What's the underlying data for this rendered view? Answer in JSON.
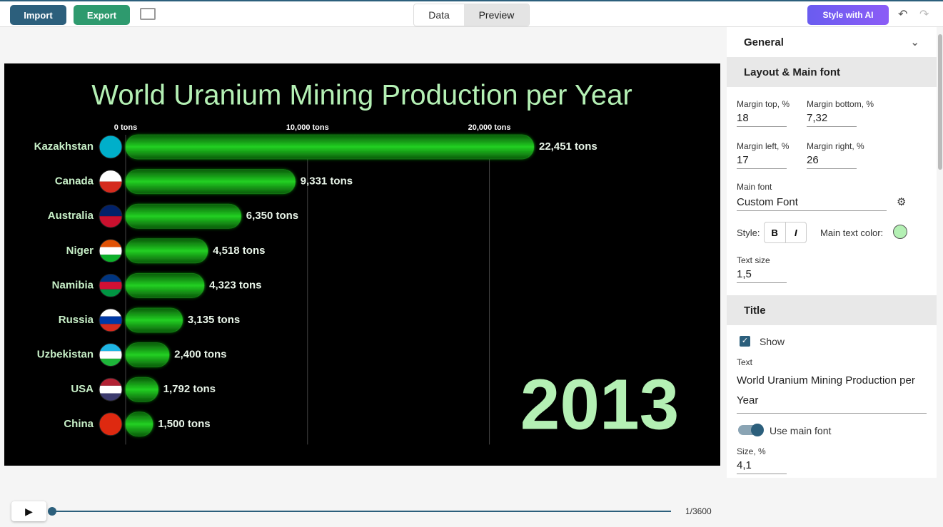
{
  "toolbar": {
    "import": "Import",
    "export": "Export",
    "data_tab": "Data",
    "preview_tab": "Preview",
    "style_ai": "Style with AI"
  },
  "chart_data": {
    "type": "bar",
    "orientation": "horizontal",
    "title": "World Uranium Mining Production per Year",
    "categories": [
      "Kazakhstan",
      "Canada",
      "Australia",
      "Niger",
      "Namibia",
      "Russia",
      "Uzbekistan",
      "USA",
      "China"
    ],
    "values": [
      22451,
      9331,
      6350,
      4518,
      4323,
      3135,
      2400,
      1792,
      1500
    ],
    "value_labels": [
      "22,451 tons",
      "9,331 tons",
      "6,350 tons",
      "4,518 tons",
      "4,323 tons",
      "3,135 tons",
      "2,400 tons",
      "1,792 tons",
      "1,500 tons"
    ],
    "color": "#1fc41f",
    "xlim": [
      0,
      22451
    ],
    "xticks": [
      {
        "value": 0,
        "label": "0 tons"
      },
      {
        "value": 10000,
        "label": "10,000 tons"
      },
      {
        "value": 20000,
        "label": "20,000 tons"
      }
    ],
    "grid": true,
    "annotation": "2013"
  },
  "panel": {
    "general": "General",
    "layout": {
      "heading": "Layout & Main font",
      "margin_top_label": "Margin top, %",
      "margin_top": "18",
      "margin_bottom_label": "Margin bottom, %",
      "margin_bottom": "7,32",
      "margin_left_label": "Margin left, %",
      "margin_left": "17",
      "margin_right_label": "Margin right, %",
      "margin_right": "26",
      "main_font_label": "Main font",
      "main_font": "Custom Font",
      "style_label": "Style:",
      "bold": "B",
      "italic": "I",
      "color_label": "Main text color:",
      "text_size_label": "Text size",
      "text_size": "1,5"
    },
    "title": {
      "heading": "Title",
      "show": "Show",
      "text_label": "Text",
      "text": "World Uranium Mining Production per Year",
      "use_main_font": "Use main font",
      "size_label": "Size, %",
      "size": "4,1"
    }
  },
  "player": {
    "counter": "1/3600"
  }
}
